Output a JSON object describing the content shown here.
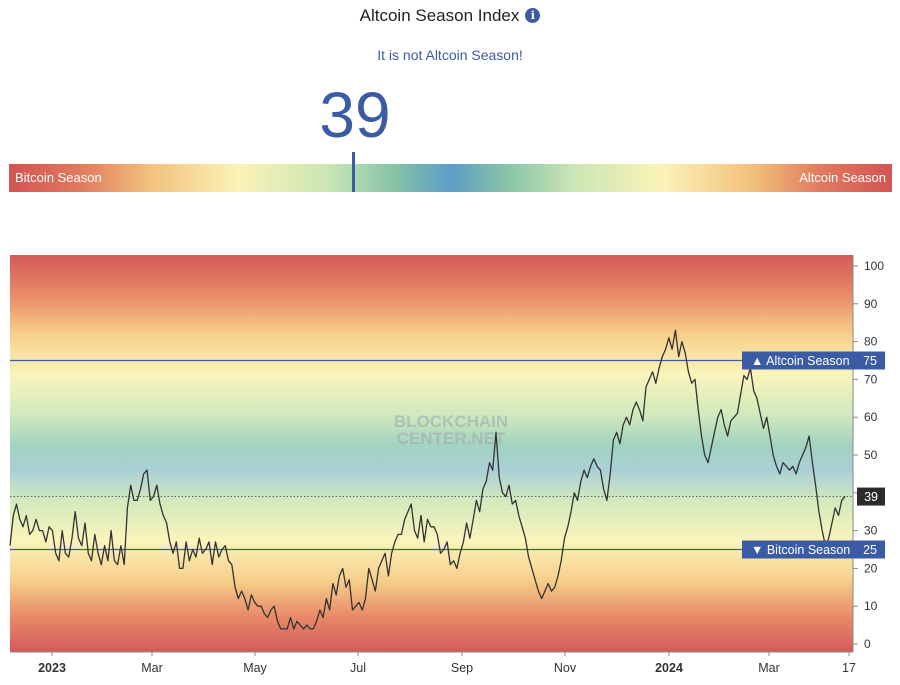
{
  "header": {
    "title": "Altcoin Season Index",
    "info_icon": "info-icon",
    "status": "It is not Altcoin Season!",
    "value": "39"
  },
  "gauge": {
    "left_label": "Bitcoin Season",
    "right_label": "Altcoin Season",
    "value": 39
  },
  "chart_data": {
    "type": "line",
    "title": "",
    "xlabel": "",
    "ylabel": "",
    "ylim": [
      0,
      100
    ],
    "y_ticks": [
      0,
      10,
      20,
      30,
      40,
      50,
      60,
      70,
      80,
      90,
      100
    ],
    "x_ticks": [
      "2023",
      "Mar",
      "May",
      "Jul",
      "Sep",
      "Nov",
      "2024",
      "Mar",
      "17"
    ],
    "watermark": [
      "BLOCKCHAIN",
      "CENTER.NET"
    ],
    "thresholds": [
      {
        "label": "▲ Altcoin Season",
        "value": 75
      },
      {
        "label": "▼ Bitcoin Season",
        "value": 25
      }
    ],
    "current": {
      "value": 39
    },
    "series": [
      {
        "values": [
          26,
          34,
          37,
          33,
          31,
          34,
          29,
          30,
          33,
          30,
          30,
          27,
          31,
          30,
          24,
          22,
          30,
          24,
          23,
          28,
          35,
          28,
          26,
          32,
          24,
          22,
          29,
          24,
          21,
          26,
          22,
          30,
          22,
          21,
          26,
          21,
          36,
          42,
          38,
          38,
          41,
          45,
          46,
          38,
          39,
          42,
          37,
          34,
          32,
          27,
          24,
          27,
          20,
          20,
          27,
          22,
          25,
          23,
          28,
          24,
          25,
          27,
          21,
          27,
          23,
          25,
          26,
          22,
          21,
          15,
          12,
          14,
          12,
          9,
          13,
          11,
          10,
          10,
          8,
          7,
          9,
          10,
          6,
          4,
          4,
          4,
          7,
          4,
          6,
          5,
          4,
          5,
          4,
          4,
          6,
          9,
          7,
          12,
          9,
          16,
          13,
          18,
          20,
          15,
          17,
          9,
          10,
          11,
          9,
          12,
          20,
          17,
          14,
          20,
          22,
          24,
          18,
          24,
          27,
          29,
          29,
          33,
          35,
          37,
          30,
          28,
          34,
          27,
          33,
          31,
          31,
          29,
          24,
          25,
          27,
          21,
          22,
          20,
          24,
          27,
          32,
          28,
          33,
          38,
          35,
          41,
          43,
          48,
          46,
          56,
          44,
          40,
          39,
          42,
          37,
          38,
          34,
          31,
          28,
          23,
          20,
          17,
          14,
          12,
          14,
          16,
          14,
          15,
          18,
          22,
          28,
          31,
          35,
          40,
          38,
          43,
          46,
          44,
          47,
          49,
          47,
          46,
          41,
          38,
          45,
          54,
          56,
          53,
          58,
          60,
          58,
          62,
          64,
          62,
          59,
          68,
          70,
          72,
          69,
          73,
          76,
          78,
          81,
          78,
          83,
          76,
          80,
          77,
          72,
          69,
          70,
          62,
          55,
          50,
          48,
          52,
          56,
          60,
          62,
          58,
          55,
          59,
          60,
          61,
          66,
          71,
          70,
          73,
          67,
          65,
          61,
          57,
          60,
          55,
          50,
          47,
          45,
          48,
          47,
          46,
          47,
          45,
          48,
          50,
          52,
          55,
          48,
          42,
          35,
          30,
          26,
          28,
          32,
          36,
          34,
          38,
          39
        ]
      }
    ]
  }
}
